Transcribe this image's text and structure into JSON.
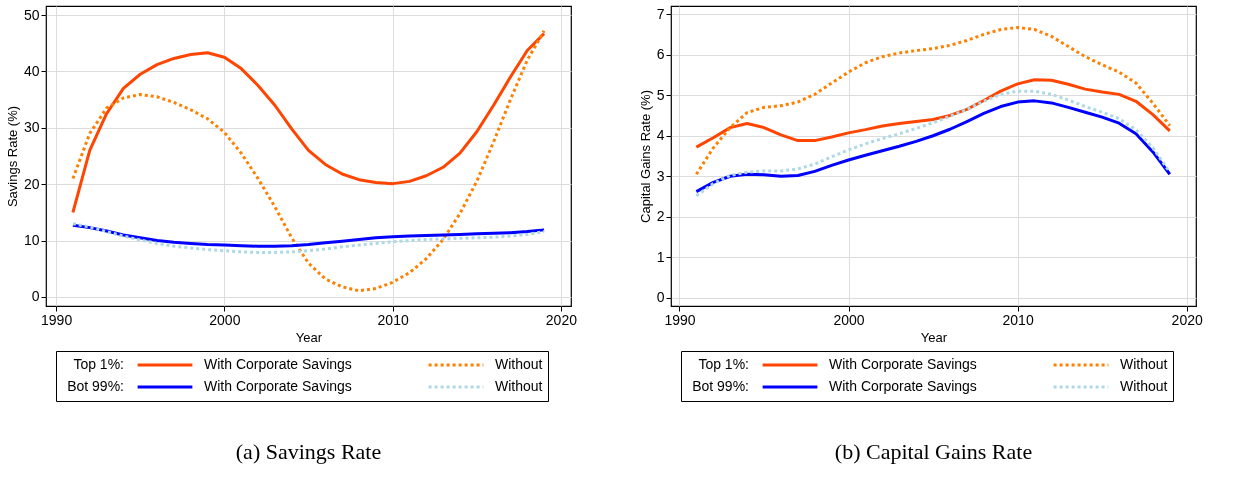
{
  "chart_data": [
    {
      "type": "line",
      "title": "(a) Savings Rate",
      "xlabel": "Year",
      "ylabel": "Savings Rate (%)",
      "grid": true,
      "legend": "bottom",
      "annotations": [
        "Top 1%:",
        "Bot 99%:"
      ],
      "x": [
        1991,
        1992,
        1993,
        1994,
        1995,
        1996,
        1997,
        1998,
        1999,
        2000,
        2001,
        2002,
        2003,
        2004,
        2005,
        2006,
        2007,
        2008,
        2009,
        2010,
        2011,
        2012,
        2013,
        2014,
        2015,
        2016,
        2017,
        2018,
        2019
      ],
      "xlim": [
        1989.4,
        2020.6
      ],
      "xticks": [
        1990,
        2000,
        2010,
        2020
      ],
      "ylim": [
        -1.6,
        51.6
      ],
      "yticks": [
        0,
        10,
        20,
        30,
        40,
        50
      ],
      "series": [
        {
          "name": "With Corporate Savings",
          "color": "#ff4500",
          "line_style": "solid",
          "values": [
            15,
            26,
            32.5,
            37,
            39.5,
            41.2,
            42.3,
            43,
            43.3,
            42.5,
            40.5,
            37.5,
            34,
            29.8,
            26,
            23.5,
            21.8,
            20.8,
            20.3,
            20.1,
            20.5,
            21.5,
            23,
            25.5,
            29.3,
            34,
            39,
            43.7,
            46.7
          ]
        },
        {
          "name": "Without",
          "color": "#ff8000",
          "line_style": "dotted",
          "values": [
            21,
            29,
            33.5,
            35.3,
            35.9,
            35.5,
            34.5,
            33.2,
            31.6,
            29.2,
            25.5,
            21,
            16,
            10.5,
            6,
            3.2,
            1.8,
            1.1,
            1.5,
            2.6,
            4.3,
            6.8,
            10.2,
            14.8,
            20.5,
            27.5,
            35,
            42,
            47.2
          ]
        },
        {
          "name": "With Corporate Savings",
          "color": "#0000ff",
          "line_style": "solid",
          "values": [
            12.7,
            12.3,
            11.7,
            11,
            10.5,
            10,
            9.7,
            9.5,
            9.3,
            9.2,
            9.1,
            9,
            9,
            9.1,
            9.3,
            9.6,
            9.9,
            10.2,
            10.5,
            10.7,
            10.8,
            10.9,
            11,
            11.1,
            11.2,
            11.3,
            11.4,
            11.6,
            11.9
          ]
        },
        {
          "name": "Without",
          "color": "#add8e6",
          "line_style": "dotted",
          "values": [
            13,
            12.4,
            11.6,
            10.8,
            10.1,
            9.5,
            9,
            8.7,
            8.4,
            8.2,
            8,
            7.9,
            7.9,
            8,
            8.2,
            8.5,
            8.9,
            9.2,
            9.5,
            9.8,
            10,
            10.2,
            10.3,
            10.4,
            10.5,
            10.6,
            10.8,
            11.1,
            11.6
          ]
        }
      ]
    },
    {
      "type": "line",
      "title": "(b) Capital Gains Rate",
      "xlabel": "Year",
      "ylabel": "Capital Gains Rate (%)",
      "grid": true,
      "legend": "bottom",
      "annotations": [
        "Top 1%:",
        "Bot 99%:"
      ],
      "x": [
        1991,
        1992,
        1993,
        1994,
        1995,
        1996,
        1997,
        1998,
        1999,
        2000,
        2001,
        2002,
        2003,
        2004,
        2005,
        2006,
        2007,
        2008,
        2009,
        2010,
        2011,
        2012,
        2013,
        2014,
        2015,
        2016,
        2017,
        2018,
        2019
      ],
      "xlim": [
        1989.5,
        2020.55
      ],
      "xticks": [
        1990,
        2000,
        2010,
        2020
      ],
      "ylim": [
        -0.2,
        7.2
      ],
      "yticks": [
        0,
        1,
        2,
        3,
        4,
        5,
        6,
        7
      ],
      "series": [
        {
          "name": "With Corporate Savings",
          "color": "#ff4500",
          "line_style": "solid",
          "values": [
            3.72,
            3.95,
            4.2,
            4.3,
            4.2,
            4.02,
            3.88,
            3.88,
            3.97,
            4.07,
            4.15,
            4.24,
            4.3,
            4.35,
            4.4,
            4.5,
            4.65,
            4.87,
            5.1,
            5.28,
            5.38,
            5.37,
            5.27,
            5.15,
            5.08,
            5.02,
            4.85,
            4.52,
            4.12
          ]
        },
        {
          "name": "Without",
          "color": "#ff8000",
          "line_style": "dotted",
          "values": [
            3.05,
            3.7,
            4.2,
            4.57,
            4.7,
            4.74,
            4.83,
            5.02,
            5.3,
            5.57,
            5.8,
            5.95,
            6.04,
            6.1,
            6.15,
            6.23,
            6.35,
            6.5,
            6.62,
            6.67,
            6.62,
            6.45,
            6.2,
            5.95,
            5.75,
            5.57,
            5.3,
            4.8,
            4.25
          ]
        },
        {
          "name": "With Corporate Savings",
          "color": "#0000ff",
          "line_style": "solid",
          "values": [
            2.62,
            2.85,
            3,
            3.05,
            3.04,
            3,
            3.02,
            3.12,
            3.27,
            3.4,
            3.52,
            3.63,
            3.74,
            3.86,
            4,
            4.16,
            4.35,
            4.55,
            4.72,
            4.83,
            4.86,
            4.81,
            4.7,
            4.58,
            4.46,
            4.31,
            4.05,
            3.6,
            3.05
          ]
        },
        {
          "name": "Without",
          "color": "#add8e6",
          "line_style": "dotted",
          "values": [
            2.52,
            2.82,
            3.02,
            3.1,
            3.13,
            3.13,
            3.18,
            3.3,
            3.48,
            3.65,
            3.8,
            3.93,
            4.05,
            4.18,
            4.32,
            4.48,
            4.65,
            4.85,
            5.02,
            5.1,
            5.1,
            5.02,
            4.88,
            4.72,
            4.58,
            4.42,
            4.15,
            3.7,
            3.1
          ]
        }
      ]
    }
  ]
}
